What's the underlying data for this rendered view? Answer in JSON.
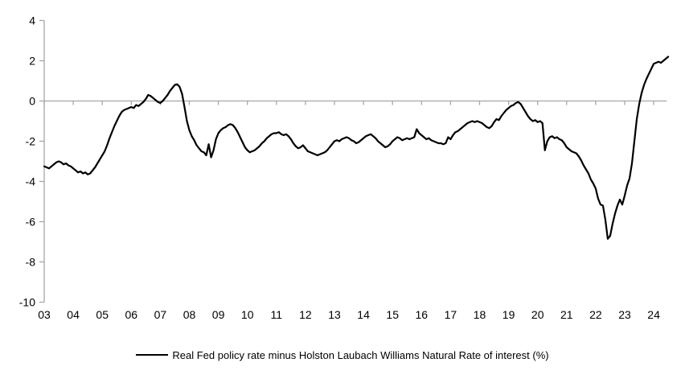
{
  "page": {
    "background": "#ffffff"
  },
  "legend": {
    "swatch_color": "#000000"
  },
  "chart_data": {
    "type": "line",
    "title": "",
    "xlabel": "",
    "ylabel": "",
    "grid": false,
    "legend_position": "bottom",
    "axis_color": "#a6a6a6",
    "label_color": "#000000",
    "ylim": [
      -10,
      4
    ],
    "y_ticks": [
      4,
      2,
      0,
      -2,
      -4,
      -6,
      -8,
      -10
    ],
    "x_tick_labels": [
      "03",
      "04",
      "05",
      "06",
      "07",
      "08",
      "09",
      "10",
      "11",
      "12",
      "13",
      "14",
      "15",
      "16",
      "17",
      "18",
      "19",
      "20",
      "21",
      "22",
      "23",
      "24"
    ],
    "x_start_year": 2003,
    "frequency": "monthly",
    "series": [
      {
        "name": "Real Fed policy rate minus Holston Laubach Williams Natural Rate of interest (%)",
        "color": "#000000",
        "line_width": 2.2,
        "values": [
          -3.25,
          -3.3,
          -3.35,
          -3.25,
          -3.15,
          -3.05,
          -3.0,
          -3.05,
          -3.15,
          -3.1,
          -3.2,
          -3.25,
          -3.35,
          -3.45,
          -3.55,
          -3.5,
          -3.6,
          -3.55,
          -3.65,
          -3.6,
          -3.45,
          -3.3,
          -3.1,
          -2.9,
          -2.7,
          -2.5,
          -2.2,
          -1.85,
          -1.55,
          -1.25,
          -1.0,
          -0.75,
          -0.55,
          -0.45,
          -0.4,
          -0.35,
          -0.3,
          -0.35,
          -0.2,
          -0.25,
          -0.15,
          -0.05,
          0.1,
          0.3,
          0.25,
          0.15,
          0.05,
          -0.05,
          -0.1,
          0.0,
          0.15,
          0.3,
          0.5,
          0.65,
          0.8,
          0.83,
          0.7,
          0.35,
          -0.3,
          -1.0,
          -1.45,
          -1.75,
          -1.95,
          -2.2,
          -2.35,
          -2.5,
          -2.55,
          -2.7,
          -2.15,
          -2.8,
          -2.45,
          -1.9,
          -1.6,
          -1.45,
          -1.35,
          -1.3,
          -1.2,
          -1.15,
          -1.2,
          -1.35,
          -1.55,
          -1.8,
          -2.05,
          -2.3,
          -2.45,
          -2.55,
          -2.5,
          -2.45,
          -2.35,
          -2.25,
          -2.1,
          -2.0,
          -1.85,
          -1.75,
          -1.65,
          -1.6,
          -1.6,
          -1.55,
          -1.65,
          -1.7,
          -1.65,
          -1.75,
          -1.9,
          -2.1,
          -2.25,
          -2.35,
          -2.3,
          -2.2,
          -2.35,
          -2.5,
          -2.55,
          -2.6,
          -2.65,
          -2.7,
          -2.65,
          -2.6,
          -2.55,
          -2.45,
          -2.3,
          -2.15,
          -2.0,
          -1.95,
          -2.0,
          -1.9,
          -1.85,
          -1.8,
          -1.85,
          -1.95,
          -2.0,
          -2.1,
          -2.05,
          -1.95,
          -1.85,
          -1.75,
          -1.7,
          -1.65,
          -1.75,
          -1.85,
          -2.0,
          -2.1,
          -2.2,
          -2.3,
          -2.25,
          -2.15,
          -2.0,
          -1.9,
          -1.8,
          -1.85,
          -1.95,
          -1.9,
          -1.85,
          -1.9,
          -1.85,
          -1.8,
          -1.4,
          -1.6,
          -1.7,
          -1.8,
          -1.9,
          -1.85,
          -1.95,
          -2.0,
          -2.05,
          -2.1,
          -2.1,
          -2.15,
          -2.1,
          -1.8,
          -1.9,
          -1.7,
          -1.55,
          -1.5,
          -1.4,
          -1.3,
          -1.2,
          -1.1,
          -1.05,
          -1.0,
          -1.05,
          -1.0,
          -1.05,
          -1.1,
          -1.2,
          -1.3,
          -1.35,
          -1.25,
          -1.05,
          -0.9,
          -0.95,
          -0.75,
          -0.6,
          -0.45,
          -0.35,
          -0.25,
          -0.2,
          -0.1,
          -0.05,
          -0.15,
          -0.35,
          -0.55,
          -0.75,
          -0.9,
          -1.0,
          -0.95,
          -1.05,
          -1.0,
          -1.1,
          -2.45,
          -2.0,
          -1.8,
          -1.75,
          -1.85,
          -1.8,
          -1.9,
          -1.95,
          -2.1,
          -2.3,
          -2.4,
          -2.5,
          -2.55,
          -2.6,
          -2.75,
          -2.95,
          -3.2,
          -3.4,
          -3.6,
          -3.9,
          -4.1,
          -4.35,
          -4.85,
          -5.15,
          -5.2,
          -5.9,
          -6.85,
          -6.7,
          -6.1,
          -5.6,
          -5.2,
          -4.9,
          -5.15,
          -4.7,
          -4.2,
          -3.85,
          -3.1,
          -2.0,
          -0.9,
          -0.15,
          0.4,
          0.8,
          1.1,
          1.35,
          1.6,
          1.85,
          1.9,
          1.95,
          1.9,
          2.0,
          2.1,
          2.2
        ]
      }
    ]
  }
}
